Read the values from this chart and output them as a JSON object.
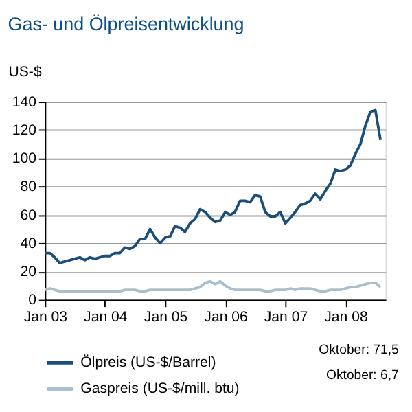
{
  "chart_data": {
    "type": "line",
    "title": "Gas- und Ölpreisentwicklung",
    "ylabel": "US-$",
    "x": [
      "2003-01",
      "2003-02",
      "2003-03",
      "2003-04",
      "2003-05",
      "2003-06",
      "2003-07",
      "2003-08",
      "2003-09",
      "2003-10",
      "2003-11",
      "2003-12",
      "2004-01",
      "2004-02",
      "2004-03",
      "2004-04",
      "2004-05",
      "2004-06",
      "2004-07",
      "2004-08",
      "2004-09",
      "2004-10",
      "2004-11",
      "2004-12",
      "2005-01",
      "2005-02",
      "2005-03",
      "2005-04",
      "2005-05",
      "2005-06",
      "2005-07",
      "2005-08",
      "2005-09",
      "2005-10",
      "2005-11",
      "2005-12",
      "2006-01",
      "2006-02",
      "2006-03",
      "2006-04",
      "2006-05",
      "2006-06",
      "2006-07",
      "2006-08",
      "2006-09",
      "2006-10",
      "2006-11",
      "2006-12",
      "2007-01",
      "2007-02",
      "2007-03",
      "2007-04",
      "2007-05",
      "2007-06",
      "2007-07",
      "2007-08",
      "2007-09",
      "2007-10",
      "2007-11",
      "2007-12",
      "2008-01",
      "2008-02",
      "2008-03",
      "2008-04",
      "2008-05",
      "2008-06",
      "2008-07",
      "2008-08"
    ],
    "series": [
      {
        "name": "Ölpreis (US-$/Barrel)",
        "color": "#1b4f7a",
        "values": [
          33,
          33,
          30,
          26,
          27,
          28,
          29,
          30,
          28,
          30,
          29,
          30,
          31,
          31,
          33,
          33,
          37,
          36,
          38,
          43,
          43,
          50,
          44,
          40,
          44,
          45,
          52,
          51,
          48,
          54,
          57,
          64,
          62,
          58,
          55,
          56,
          62,
          60,
          62,
          70,
          70,
          69,
          74,
          73,
          62,
          59,
          59,
          62,
          54,
          58,
          62,
          67,
          68,
          70,
          75,
          71,
          77,
          82,
          92,
          91,
          92,
          95,
          103,
          110,
          123,
          133,
          134,
          113
        ]
      },
      {
        "name": "Gaspreis (US-$/mill. btu)",
        "color": "#a9bfd0",
        "values": [
          7,
          8,
          7,
          6,
          6,
          6,
          6,
          6,
          6,
          6,
          6,
          6,
          6,
          6,
          6,
          6,
          7,
          7,
          7,
          6,
          6,
          7,
          7,
          7,
          7,
          7,
          7,
          7,
          7,
          7,
          8,
          9,
          12,
          13,
          11,
          13,
          10,
          8,
          7,
          7,
          7,
          7,
          7,
          7,
          6,
          6,
          7,
          7,
          7,
          8,
          7,
          8,
          8,
          8,
          7,
          6,
          6,
          7,
          7,
          7,
          8,
          9,
          9,
          10,
          11,
          12,
          12,
          9
        ]
      }
    ],
    "xlim": [
      "2003-01",
      "2008-09"
    ],
    "xticks": [
      {
        "value": "2003-01",
        "label": "Jan 03"
      },
      {
        "value": "2004-01",
        "label": "Jan 04"
      },
      {
        "value": "2005-01",
        "label": "Jan 05"
      },
      {
        "value": "2006-01",
        "label": "Jan 06"
      },
      {
        "value": "2007-01",
        "label": "Jan 07"
      },
      {
        "value": "2008-01",
        "label": "Jan 08"
      }
    ],
    "ylim": [
      0,
      140
    ],
    "yticks": [
      0,
      20,
      40,
      60,
      80,
      100,
      120,
      140
    ],
    "grid": "y",
    "legend": "bottom",
    "line_style": "solid",
    "annotations": [
      "Oktober: 71,5",
      "Oktober:  6,7"
    ]
  }
}
